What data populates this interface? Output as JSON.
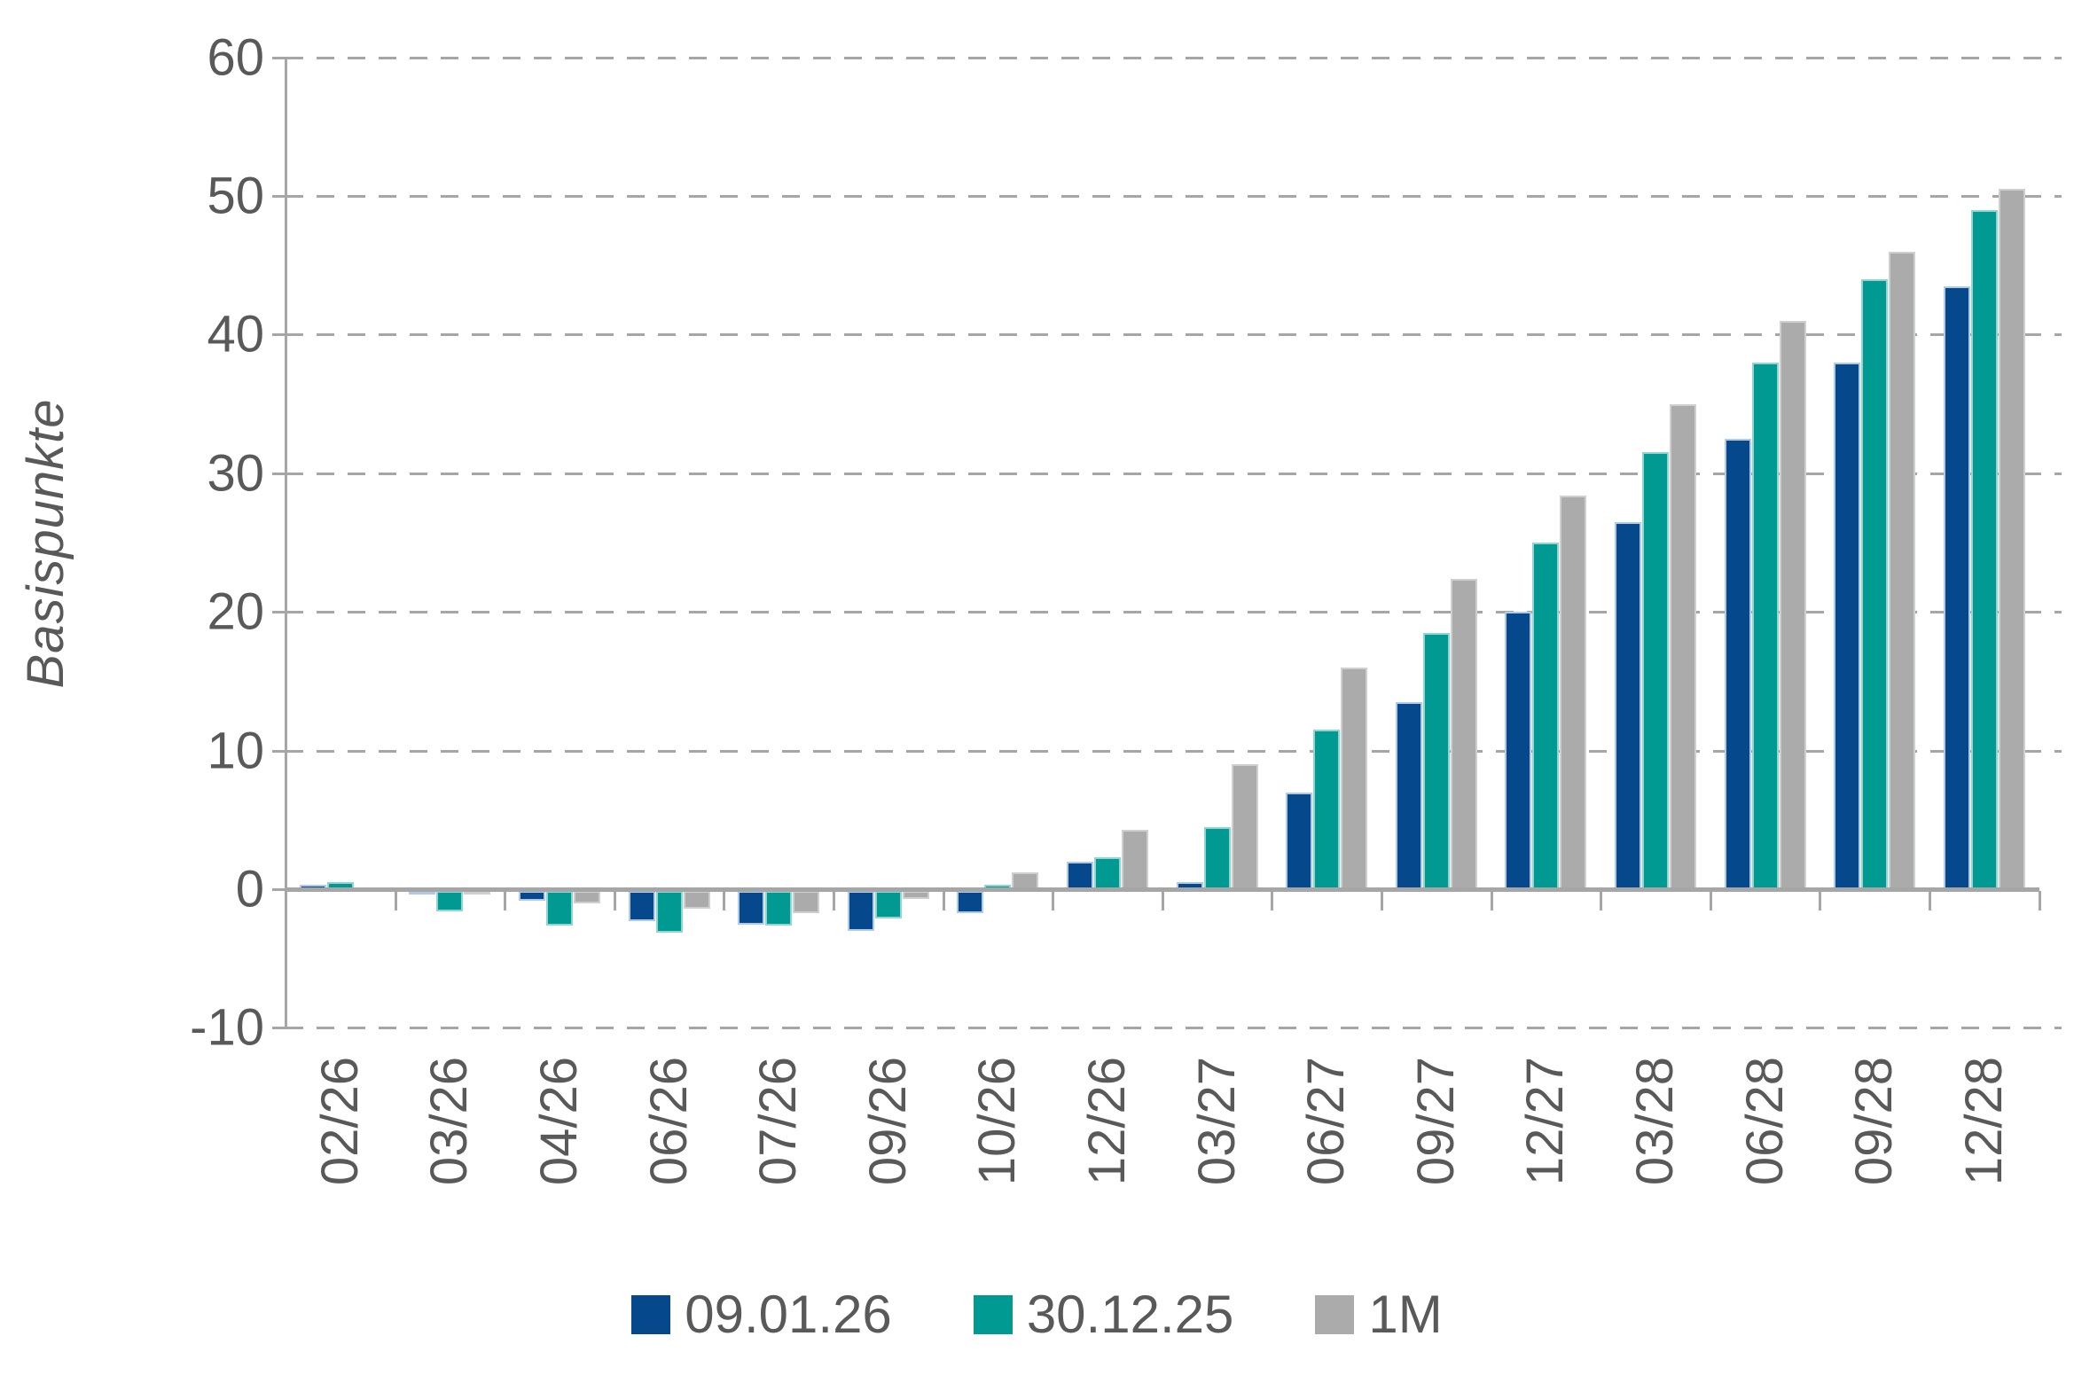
{
  "chart_data": {
    "type": "bar",
    "title": "",
    "xlabel": "",
    "ylabel": "Basispunkte",
    "ylim": [
      -10,
      60
    ],
    "yticks": [
      60,
      50,
      40,
      30,
      20,
      10,
      0,
      -10
    ],
    "grid": "horizontal-dashed",
    "legend_position": "bottom",
    "categories": [
      "02/26",
      "03/26",
      "04/26",
      "06/26",
      "07/26",
      "09/26",
      "10/26",
      "12/26",
      "03/27",
      "06/27",
      "09/27",
      "12/27",
      "03/28",
      "06/28",
      "09/28",
      "12/28"
    ],
    "series": [
      {
        "name": "09.01.26",
        "color": "#05488C",
        "border_color": "#AFC9E6",
        "values": [
          0.3,
          -0.2,
          -0.7,
          -2.2,
          -2.4,
          -2.9,
          -1.6,
          2.0,
          0.5,
          7.0,
          13.5,
          20.0,
          26.5,
          32.5,
          38.0,
          43.5
        ]
      },
      {
        "name": "30.12.25",
        "color": "#009A93",
        "border_color": "#8FD6D2",
        "values": [
          0.5,
          -1.5,
          -2.5,
          -3.0,
          -2.5,
          -2.0,
          0.3,
          2.3,
          4.5,
          11.5,
          18.5,
          25.0,
          31.5,
          38.0,
          44.0,
          49.0
        ]
      },
      {
        "name": "1M",
        "color": "#ABABAB",
        "border_color": "#CFCFCF",
        "values": [
          0.1,
          -0.1,
          -0.9,
          -1.3,
          -1.6,
          -0.6,
          1.2,
          4.3,
          9.0,
          16.0,
          22.4,
          28.4,
          35.0,
          41.0,
          46.0,
          50.5
        ]
      }
    ],
    "axis_color": "#A6A6A6",
    "text_color": "#595959",
    "background_color": "#FFFFFF"
  }
}
